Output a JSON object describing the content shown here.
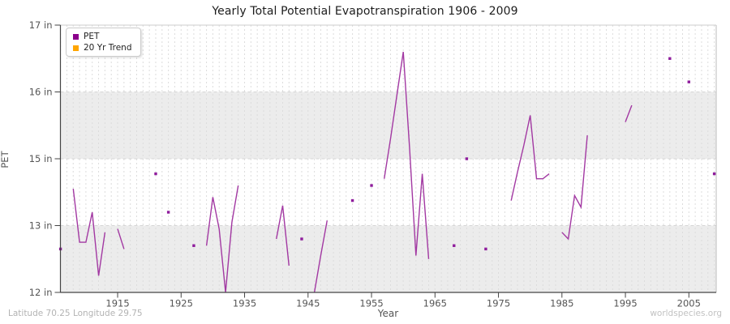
{
  "page": {
    "footer_left": "Latitude 70.25 Longitude 29.75",
    "footer_right": "worldspecies.org"
  },
  "chart_data": {
    "type": "line",
    "title": "Yearly Total Potential Evapotranspiration 1906 - 2009",
    "xlabel": "Year",
    "ylabel": "PET",
    "unit": "in",
    "x_range": [
      1906,
      2009
    ],
    "x_ticks": [
      1915,
      1925,
      1935,
      1945,
      1955,
      1965,
      1975,
      1985,
      1995,
      2005
    ],
    "y_tick_values": [
      12,
      13,
      15,
      16,
      17
    ],
    "y_tick_labels": [
      "12 in",
      "13 in",
      "15 in",
      "16 in",
      "17 in"
    ],
    "grid": true,
    "legend_position": "top-left",
    "legend": [
      {
        "label": "PET",
        "color": "#8B008B"
      },
      {
        "label": "20 Yr Trend",
        "color": "#FFA500"
      }
    ],
    "line_color": "#A238A2",
    "marker_color": "#8F1C9C",
    "series": [
      {
        "name": "PET",
        "points": [
          [
            1906,
            12.65
          ],
          [
            1907,
            null
          ],
          [
            1908,
            14.1
          ],
          [
            1909,
            12.75
          ],
          [
            1910,
            12.75
          ],
          [
            1911,
            13.4
          ],
          [
            1912,
            12.25
          ],
          [
            1913,
            12.9
          ],
          [
            1914,
            null
          ],
          [
            1915,
            12.95
          ],
          [
            1916,
            12.65
          ],
          [
            1917,
            null
          ],
          [
            1918,
            null
          ],
          [
            1919,
            null
          ],
          [
            1920,
            null
          ],
          [
            1921,
            14.55
          ],
          [
            1922,
            null
          ],
          [
            1923,
            13.4
          ],
          [
            1924,
            null
          ],
          [
            1925,
            null
          ],
          [
            1926,
            null
          ],
          [
            1927,
            12.7
          ],
          [
            1928,
            null
          ],
          [
            1929,
            12.7
          ],
          [
            1930,
            13.85
          ],
          [
            1931,
            12.95
          ],
          [
            1932,
            12.0
          ],
          [
            1933,
            13.1
          ],
          [
            1934,
            14.2
          ],
          [
            1935,
            null
          ],
          [
            1936,
            null
          ],
          [
            1937,
            null
          ],
          [
            1938,
            null
          ],
          [
            1939,
            null
          ],
          [
            1940,
            12.8
          ],
          [
            1941,
            13.6
          ],
          [
            1942,
            12.4
          ],
          [
            1943,
            null
          ],
          [
            1944,
            12.8
          ],
          [
            1945,
            null
          ],
          [
            1946,
            12.0
          ],
          [
            1947,
            12.55
          ],
          [
            1948,
            13.15
          ],
          [
            1949,
            null
          ],
          [
            1950,
            null
          ],
          [
            1951,
            null
          ],
          [
            1952,
            13.75
          ],
          [
            1953,
            null
          ],
          [
            1954,
            null
          ],
          [
            1955,
            14.2
          ],
          [
            1956,
            null
          ],
          [
            1957,
            14.4
          ],
          [
            1958,
            15.3
          ],
          [
            1959,
            15.95
          ],
          [
            1960,
            16.6
          ],
          [
            1961,
            15.15
          ],
          [
            1962,
            12.55
          ],
          [
            1963,
            14.55
          ],
          [
            1964,
            12.5
          ],
          [
            1965,
            null
          ],
          [
            1966,
            null
          ],
          [
            1967,
            null
          ],
          [
            1968,
            12.7
          ],
          [
            1969,
            null
          ],
          [
            1970,
            15.0
          ],
          [
            1971,
            null
          ],
          [
            1972,
            null
          ],
          [
            1973,
            12.65
          ],
          [
            1974,
            null
          ],
          [
            1975,
            null
          ],
          [
            1976,
            null
          ],
          [
            1977,
            13.75
          ],
          [
            1978,
            14.6
          ],
          [
            1979,
            15.2
          ],
          [
            1980,
            15.65
          ],
          [
            1981,
            14.4
          ],
          [
            1982,
            14.4
          ],
          [
            1983,
            14.55
          ],
          [
            1984,
            null
          ],
          [
            1985,
            12.9
          ],
          [
            1986,
            12.8
          ],
          [
            1987,
            13.9
          ],
          [
            1988,
            13.55
          ],
          [
            1989,
            15.35
          ],
          [
            1990,
            null
          ],
          [
            1991,
            null
          ],
          [
            1992,
            null
          ],
          [
            1993,
            null
          ],
          [
            1994,
            null
          ],
          [
            1995,
            15.55
          ],
          [
            1996,
            15.8
          ],
          [
            1997,
            null
          ],
          [
            1998,
            null
          ],
          [
            1999,
            null
          ],
          [
            2000,
            null
          ],
          [
            2001,
            null
          ],
          [
            2002,
            16.5
          ],
          [
            2003,
            null
          ],
          [
            2004,
            null
          ],
          [
            2005,
            16.15
          ],
          [
            2006,
            null
          ],
          [
            2007,
            null
          ],
          [
            2008,
            null
          ],
          [
            2009,
            14.55
          ]
        ]
      }
    ]
  }
}
